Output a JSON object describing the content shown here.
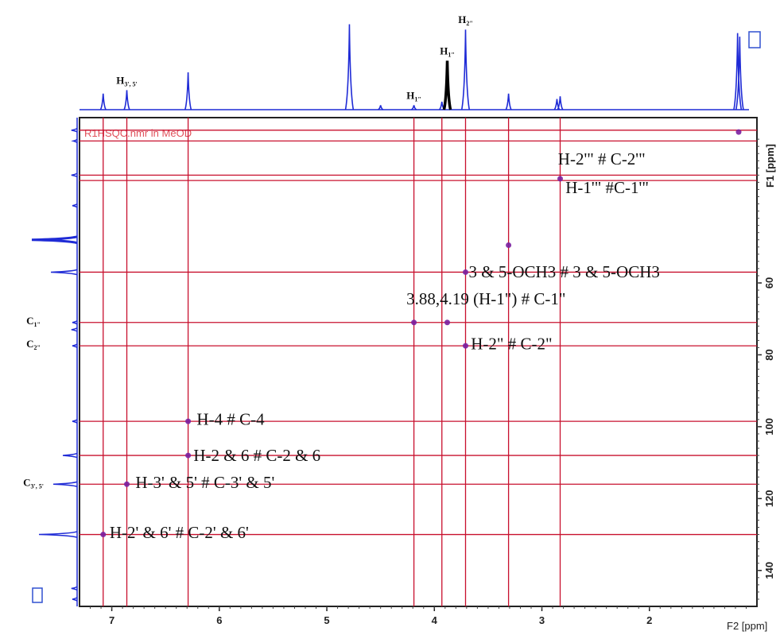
{
  "chart_data": {
    "type": "heatmap",
    "subtype": "2D NMR HSQC spectrum with 1D projections",
    "spectrum_label": "R1HSQC.nmr in MeOD",
    "x_axis": {
      "label": "F2 [ppm]",
      "range": [
        7.3,
        1.0
      ],
      "reversed": true,
      "ticks": [
        7,
        6,
        5,
        4,
        3,
        2
      ]
    },
    "y_axis": {
      "label": "F1 [ppm]",
      "range": [
        14,
        150
      ],
      "reversed": true,
      "ticks": [
        60,
        80,
        100,
        120,
        140
      ],
      "position": "right"
    },
    "grid": false,
    "colors": {
      "spectrum": "#1f2bd6",
      "guide_lines": "#c8102e",
      "peaks": "#7a1fa0",
      "frame": "#222222"
    },
    "projection_peaks_f2": [
      {
        "ppm": 7.08,
        "height": 0.18
      },
      {
        "ppm": 6.86,
        "height": 0.22,
        "label": "H3', 5'"
      },
      {
        "ppm": 6.29,
        "height": 0.42
      },
      {
        "ppm": 4.79,
        "height": 0.96
      },
      {
        "ppm": 4.5,
        "height": 0.05
      },
      {
        "ppm": 4.19,
        "height": 0.05,
        "label": "H1\""
      },
      {
        "ppm": 3.93,
        "height": 0.09
      },
      {
        "ppm": 3.88,
        "height": 0.55,
        "label": "H1\"",
        "black": true
      },
      {
        "ppm": 3.71,
        "height": 0.9,
        "label": "H2\""
      },
      {
        "ppm": 3.31,
        "height": 0.18
      },
      {
        "ppm": 2.86,
        "height": 0.12
      },
      {
        "ppm": 2.83,
        "height": 0.15
      },
      {
        "ppm": 1.18,
        "height": 0.86
      },
      {
        "ppm": 1.16,
        "height": 0.82
      }
    ],
    "projection_peaks_f1": [
      {
        "ppm": 17.5,
        "height": 0.12
      },
      {
        "ppm": 20.5,
        "height": 0.08
      },
      {
        "ppm": 30.0,
        "height": 0.12
      },
      {
        "ppm": 38.5,
        "height": 0.1
      },
      {
        "ppm": 48.0,
        "height": 0.95
      },
      {
        "ppm": 57.0,
        "height": 0.55
      },
      {
        "ppm": 71.0,
        "height": 0.1,
        "label": "C1\""
      },
      {
        "ppm": 73.0,
        "height": 0.12
      },
      {
        "ppm": 77.5,
        "height": 0.1,
        "label": "C2\""
      },
      {
        "ppm": 98.5,
        "height": 0.1
      },
      {
        "ppm": 108.0,
        "height": 0.3
      },
      {
        "ppm": 116.0,
        "height": 0.5,
        "label": "C3', 5'"
      },
      {
        "ppm": 130.0,
        "height": 0.8
      },
      {
        "ppm": 145.0,
        "height": 0.12
      },
      {
        "ppm": 148.0,
        "height": 0.1
      }
    ],
    "cross_peaks": [
      {
        "f2": 1.17,
        "f1": 18.0
      },
      {
        "f2": 2.83,
        "f1": 31.0
      },
      {
        "f2": 3.31,
        "f1": 49.5
      },
      {
        "f2": 3.71,
        "f1": 57.0
      },
      {
        "f2": 3.88,
        "f1": 71.0
      },
      {
        "f2": 4.19,
        "f1": 71.0
      },
      {
        "f2": 3.71,
        "f1": 77.5
      },
      {
        "f2": 6.29,
        "f1": 98.5
      },
      {
        "f2": 6.29,
        "f1": 108.0
      },
      {
        "f2": 6.86,
        "f1": 116.0
      },
      {
        "f2": 7.08,
        "f1": 130.0
      }
    ],
    "vertical_guides_f2": [
      7.08,
      6.86,
      6.29,
      4.19,
      3.93,
      3.71,
      3.31,
      2.83
    ],
    "horizontal_guides_f1": [
      17.5,
      20.5,
      30.0,
      31.5,
      57.0,
      71.0,
      77.5,
      98.5,
      108.0,
      116.0,
      130.0
    ],
    "annotations": [
      {
        "text": "H-2'\" # C-2'\"",
        "f2": 2.85,
        "f1": 27.0
      },
      {
        "text": "H-1'\" #C-1'\"",
        "f2": 2.78,
        "f1": 35.0
      },
      {
        "text": "3 & 5-OCH3 # 3 & 5-OCH3",
        "f2": 3.68,
        "f1": 58.5
      },
      {
        "text": "3.88,4.19 (H-1\") # C-1\"",
        "f2": 4.26,
        "f1": 66.0
      },
      {
        "text": "H-2\" # C-2\"",
        "f2": 3.66,
        "f1": 78.5
      },
      {
        "text": "H-4 # C-4",
        "f2": 6.21,
        "f1": 99.5
      },
      {
        "text": "H-2 & 6 # C-2 & 6",
        "f2": 6.24,
        "f1": 109.5
      },
      {
        "text": "H-3' & 5' # C-3' & 5'",
        "f2": 6.78,
        "f1": 117.0
      },
      {
        "text": "H-2' & 6' # C-2' & 6'",
        "f2": 7.02,
        "f1": 131.0
      }
    ]
  }
}
